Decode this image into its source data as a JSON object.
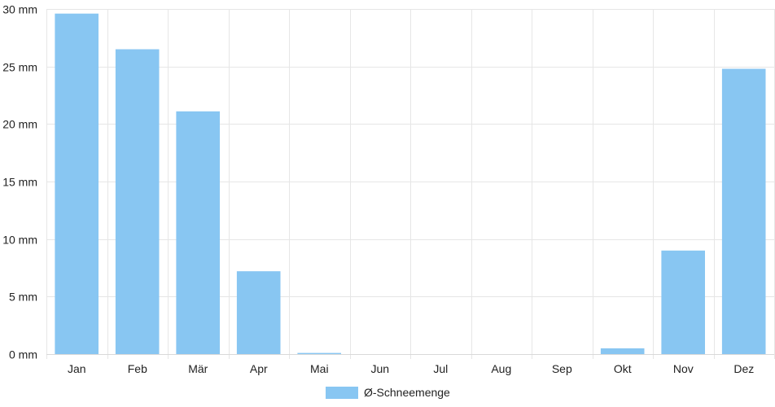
{
  "chart_data": {
    "type": "bar",
    "categories": [
      "Jan",
      "Feb",
      "Mär",
      "Apr",
      "Mai",
      "Jun",
      "Jul",
      "Aug",
      "Sep",
      "Okt",
      "Nov",
      "Dez"
    ],
    "series": [
      {
        "name": "Ø-Schneemenge",
        "values": [
          29.6,
          26.5,
          21.1,
          7.2,
          0.1,
          0,
          0,
          0,
          0,
          0.5,
          9.0,
          24.8
        ],
        "color": "#88c6f2"
      }
    ],
    "ylim": [
      0,
      30
    ],
    "yticks": [
      "0 mm",
      "5 mm",
      "10 mm",
      "15 mm",
      "20 mm",
      "25 mm",
      "30 mm"
    ],
    "ytick_values": [
      0,
      5,
      10,
      15,
      20,
      25,
      30
    ],
    "grid": true,
    "legend_position": "bottom-center"
  }
}
